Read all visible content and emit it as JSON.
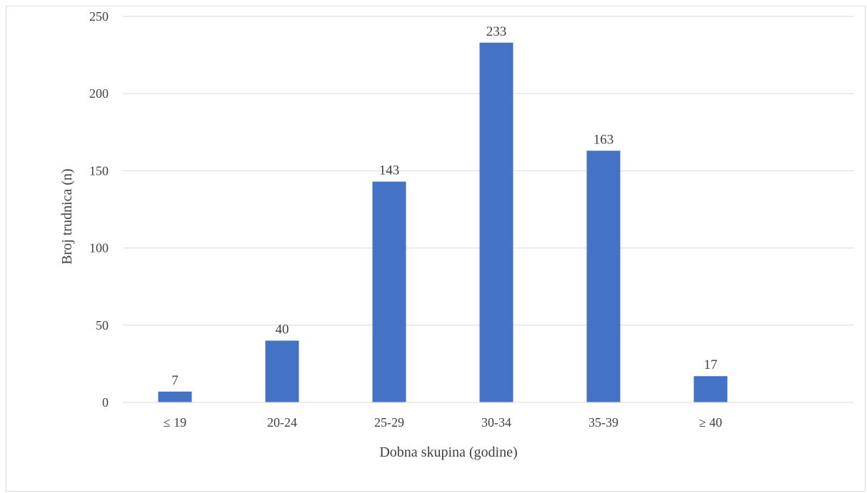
{
  "chart_data": {
    "type": "bar",
    "title": "",
    "xlabel": "Dobna skupina (godine)",
    "ylabel": "Broj trudnica (n)",
    "categories": [
      "≤ 19",
      "20-24",
      "25-29",
      "30-34",
      "35-39",
      "≥ 40"
    ],
    "values": [
      7,
      40,
      143,
      233,
      163,
      17
    ],
    "ylim": [
      0,
      250
    ],
    "yticks": [
      0,
      50,
      100,
      150,
      200,
      250
    ],
    "grid": true,
    "legend": "none",
    "bar_color": "#4472c4",
    "gridline_color": "#d9d9d9",
    "text_color": "#404040"
  }
}
